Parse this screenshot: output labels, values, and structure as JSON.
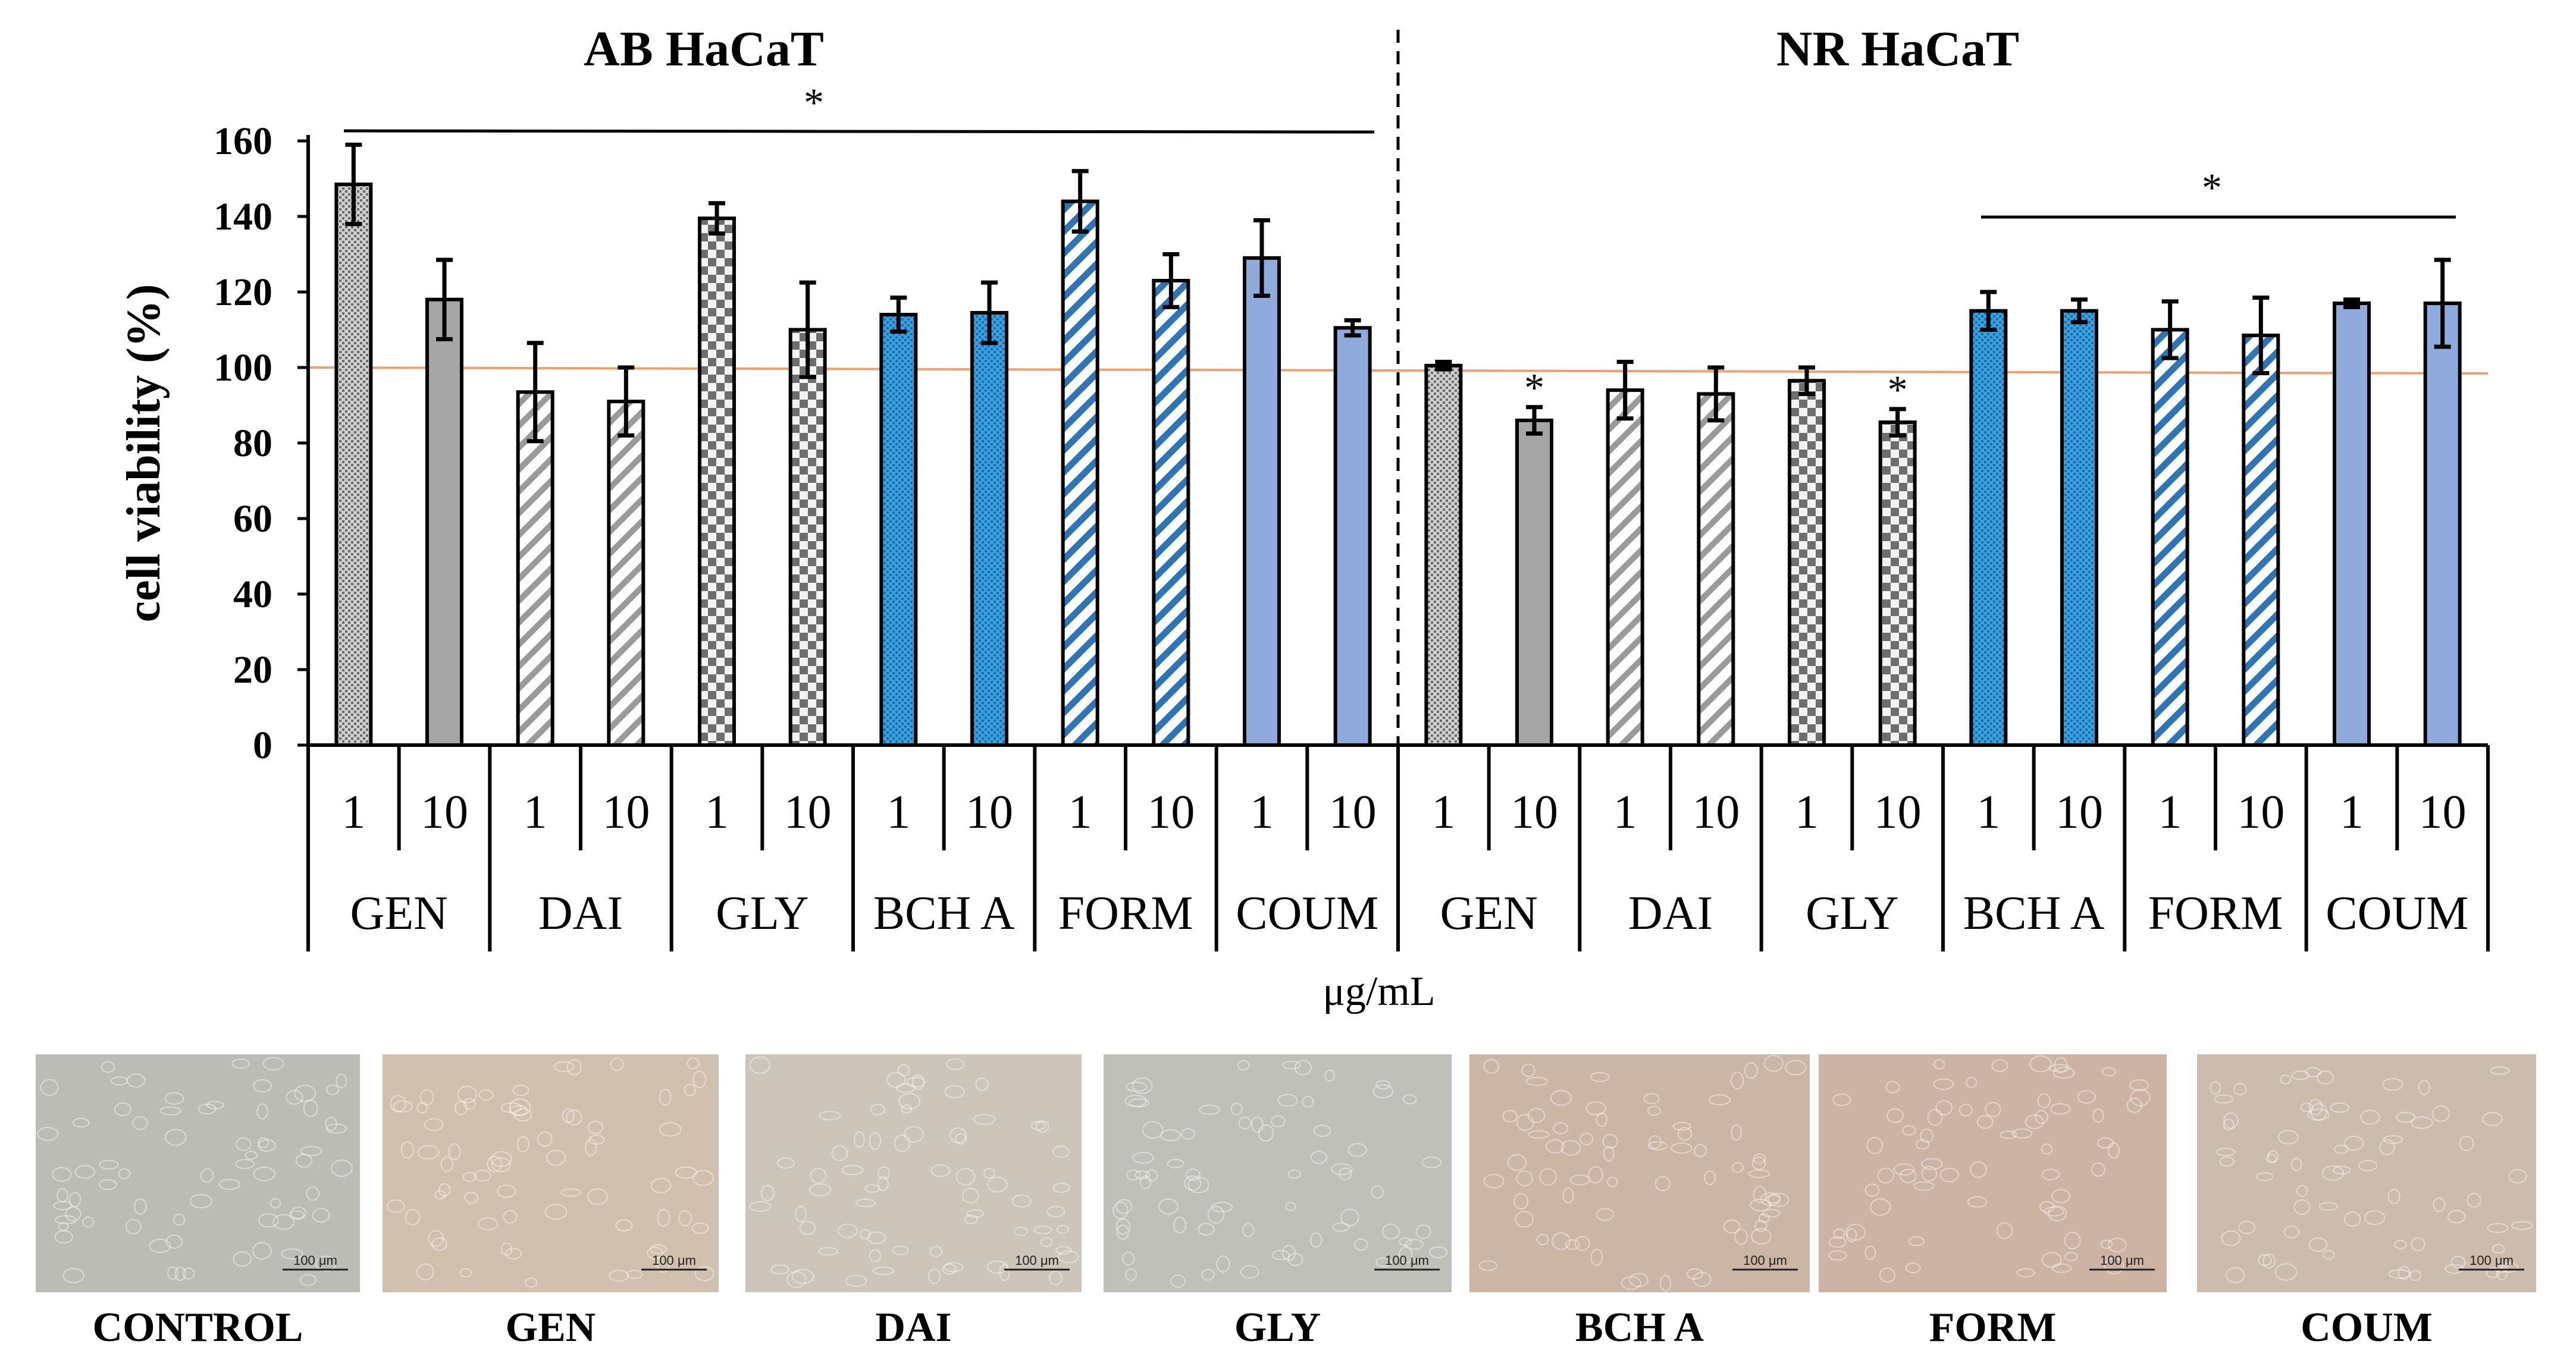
{
  "chart_data": {
    "type": "bar",
    "ylabel": "cell viability (%)",
    "xlabel": "μg/mL",
    "ylim": [
      0,
      160
    ],
    "yticks": [
      "0",
      "20",
      "40",
      "60",
      "80",
      "100",
      "120",
      "140",
      "160"
    ],
    "reference_line": 100,
    "reference_color": "#f0a070",
    "grid": false,
    "legend": "none",
    "colors": {
      "gray": "#a6a6a6",
      "blue_light": "#8faadc",
      "blue_mid": "#1f8fd0",
      "blue_stripe": "#2e75b6",
      "outline": "#000000"
    },
    "panels": [
      {
        "title": "AB HaCaT",
        "significance_label": "*",
        "groups": [
          {
            "name": "GEN",
            "concentrations": [
              "1",
              "10"
            ],
            "values": [
              148.5,
              118
            ],
            "errors": [
              10.5,
              10.5
            ],
            "fill": [
              "gray-dots",
              "gray-solid"
            ],
            "stars": [
              "",
              ""
            ]
          },
          {
            "name": "DAI",
            "concentrations": [
              "1",
              "10"
            ],
            "values": [
              93.5,
              91
            ],
            "errors": [
              13,
              9
            ],
            "fill": [
              "gray-stripe",
              "gray-stripe"
            ],
            "stars": [
              "",
              ""
            ]
          },
          {
            "name": "GLY",
            "concentrations": [
              "1",
              "10"
            ],
            "values": [
              139.5,
              110
            ],
            "errors": [
              4,
              12.5
            ],
            "fill": [
              "gray-check",
              "gray-check"
            ],
            "stars": [
              "",
              ""
            ]
          },
          {
            "name": "BCH A",
            "concentrations": [
              "1",
              "10"
            ],
            "values": [
              114,
              114.5
            ],
            "errors": [
              4.5,
              8
            ],
            "fill": [
              "blue-dots",
              "blue-dots"
            ],
            "stars": [
              "",
              ""
            ]
          },
          {
            "name": "FORM",
            "concentrations": [
              "1",
              "10"
            ],
            "values": [
              144,
              123
            ],
            "errors": [
              8,
              7
            ],
            "fill": [
              "blue-stripe",
              "blue-stripe"
            ],
            "stars": [
              "",
              ""
            ]
          },
          {
            "name": "COUM",
            "concentrations": [
              "1",
              "10"
            ],
            "values": [
              129,
              110.5
            ],
            "errors": [
              10,
              2
            ],
            "fill": [
              "blue-solid",
              "blue-solid"
            ],
            "stars": [
              "",
              ""
            ]
          }
        ]
      },
      {
        "title": "NR HaCaT",
        "significance_label": "*",
        "groups": [
          {
            "name": "GEN",
            "concentrations": [
              "1",
              "10"
            ],
            "values": [
              100.5,
              86
            ],
            "errors": [
              1,
              3.5
            ],
            "fill": [
              "gray-dots",
              "gray-solid"
            ],
            "stars": [
              "",
              "*"
            ]
          },
          {
            "name": "DAI",
            "concentrations": [
              "1",
              "10"
            ],
            "values": [
              94,
              93
            ],
            "errors": [
              7.5,
              7
            ],
            "fill": [
              "gray-stripe",
              "gray-stripe"
            ],
            "stars": [
              "",
              ""
            ]
          },
          {
            "name": "GLY",
            "concentrations": [
              "1",
              "10"
            ],
            "values": [
              96.5,
              85.5
            ],
            "errors": [
              3.5,
              3.5
            ],
            "fill": [
              "gray-check",
              "gray-check"
            ],
            "stars": [
              "",
              "*"
            ]
          },
          {
            "name": "BCH A",
            "concentrations": [
              "1",
              "10"
            ],
            "values": [
              115,
              115
            ],
            "errors": [
              5,
              3
            ],
            "fill": [
              "blue-dots",
              "blue-dots"
            ],
            "stars": [
              "",
              ""
            ]
          },
          {
            "name": "FORM",
            "concentrations": [
              "1",
              "10"
            ],
            "values": [
              110,
              108.5
            ],
            "errors": [
              7.5,
              10
            ],
            "fill": [
              "blue-stripe",
              "blue-stripe"
            ],
            "stars": [
              "",
              ""
            ]
          },
          {
            "name": "COUM",
            "concentrations": [
              "1",
              "10"
            ],
            "values": [
              117,
              117
            ],
            "errors": [
              1,
              11.5
            ],
            "fill": [
              "blue-solid",
              "blue-solid"
            ],
            "stars": [
              "",
              ""
            ]
          }
        ]
      }
    ]
  },
  "micrographs": [
    {
      "label": "CONTROL",
      "tint": "#bcbcb6",
      "scale_text": "100 μm"
    },
    {
      "label": "GEN",
      "tint": "#d2c0ae",
      "scale_text": "100 μm"
    },
    {
      "label": "DAI",
      "tint": "#cdc4ba",
      "scale_text": "100 μm"
    },
    {
      "label": "GLY",
      "tint": "#bfc0b8",
      "scale_text": "100 μm"
    },
    {
      "label": "BCH A",
      "tint": "#cbb5a4",
      "scale_text": "100 μm"
    },
    {
      "label": "FORM",
      "tint": "#cdb3a3",
      "scale_text": "100 μm"
    },
    {
      "label": "COUM",
      "tint": "#ccbcad",
      "scale_text": "100 μm"
    }
  ]
}
